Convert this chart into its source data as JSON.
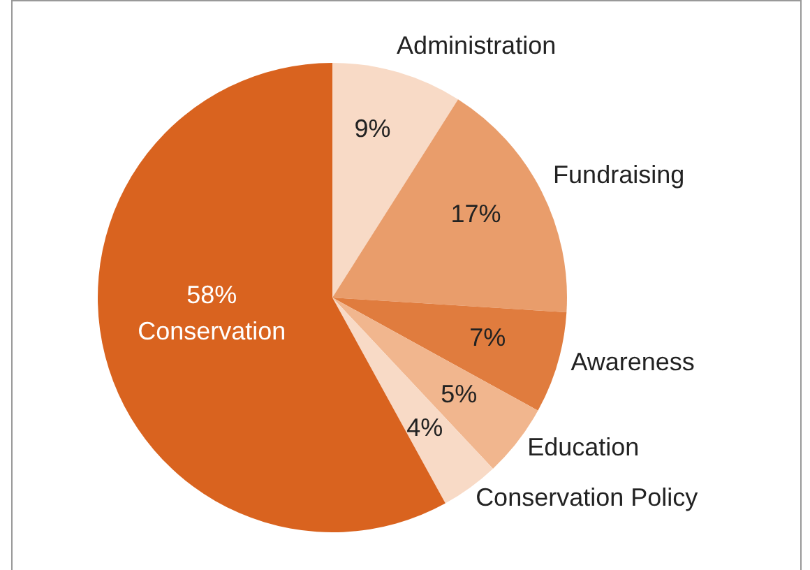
{
  "chart_data": {
    "type": "pie",
    "categories": [
      "Administration",
      "Fundraising",
      "Awareness",
      "Education",
      "Conservation Policy",
      "Conservation"
    ],
    "values": [
      9,
      17,
      7,
      5,
      4,
      58
    ],
    "colors": [
      "#f8dac6",
      "#e99d6b",
      "#e07c3e",
      "#f1b68e",
      "#f8dac6",
      "#d9631f"
    ],
    "value_labels": [
      "9%",
      "17%",
      "7%",
      "5%",
      "4%",
      "58%"
    ]
  }
}
